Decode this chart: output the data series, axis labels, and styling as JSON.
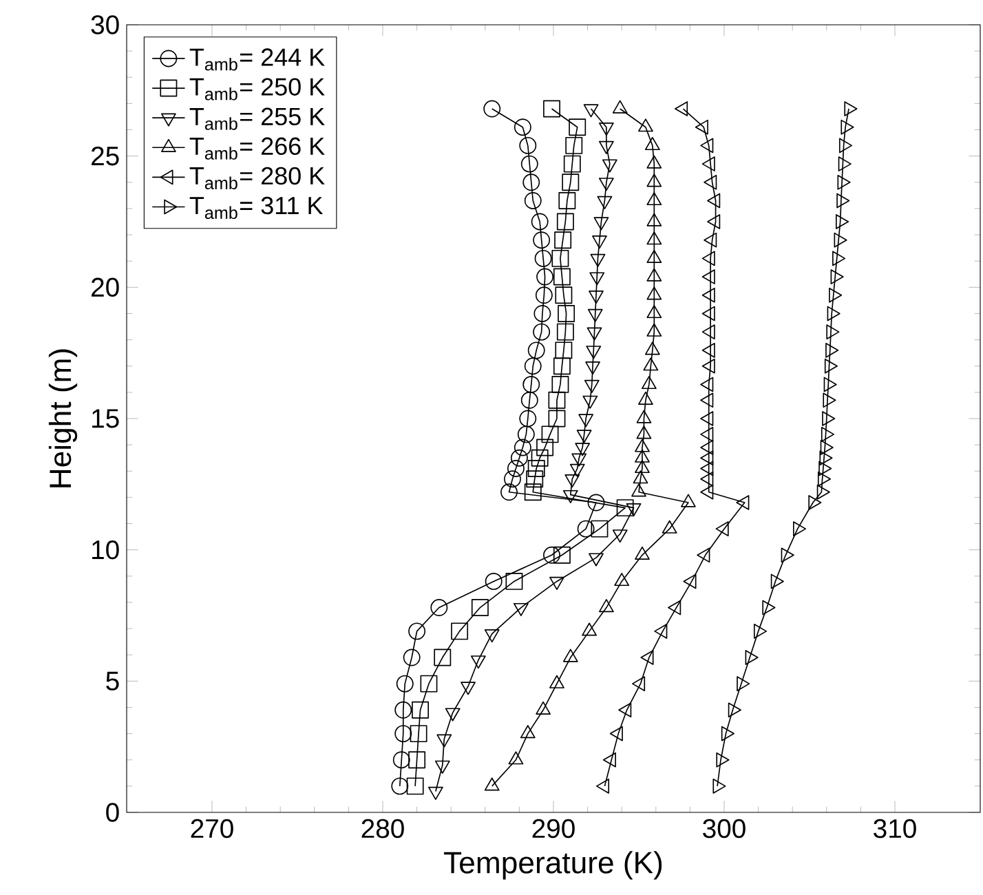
{
  "chart_data": {
    "type": "line",
    "xlabel": "Temperature (K)",
    "ylabel": "Height (m)",
    "xlim": [
      265,
      315
    ],
    "xticks": [
      270,
      280,
      290,
      300,
      310
    ],
    "ylim": [
      0,
      30
    ],
    "yticks": [
      0,
      5,
      10,
      15,
      20,
      25,
      30
    ],
    "legend": "top left",
    "line_style": "solid",
    "series": [
      {
        "name": "T$_{amb}$= 244 K",
        "color": "#000000",
        "marker": "circle",
        "x": [
          281.0,
          281.1,
          281.2,
          281.2,
          281.3,
          281.7,
          282.0,
          283.3,
          286.5,
          289.9,
          291.9,
          292.5,
          287.4,
          287.6,
          287.8,
          288.0,
          288.2,
          288.4,
          288.5,
          288.6,
          288.7,
          288.8,
          289.0,
          289.3,
          289.35,
          289.45,
          289.5,
          289.4,
          289.3,
          289.2,
          288.8,
          288.7,
          288.6,
          288.5,
          288.2,
          286.4
        ],
        "values": [
          1,
          2,
          3,
          3.9,
          4.9,
          5.9,
          6.9,
          7.8,
          8.8,
          9.8,
          10.8,
          11.8,
          12.2,
          12.7,
          13.1,
          13.5,
          13.9,
          14.4,
          15.0,
          15.7,
          16.3,
          17.0,
          17.6,
          18.3,
          19.0,
          19.7,
          20.4,
          21.1,
          21.8,
          22.5,
          23.3,
          24.0,
          24.7,
          25.4,
          26.1,
          26.8
        ]
      },
      {
        "name": "T$_{amb}$= 250 K",
        "color": "#000000",
        "marker": "square",
        "x": [
          281.9,
          282.0,
          282.1,
          282.2,
          282.7,
          283.5,
          284.5,
          285.7,
          287.7,
          290.5,
          292.7,
          294.2,
          288.8,
          288.9,
          289.0,
          289.2,
          289.5,
          289.8,
          290.2,
          290.2,
          290.4,
          290.5,
          290.6,
          290.7,
          290.75,
          290.6,
          290.5,
          290.4,
          290.55,
          290.7,
          290.8,
          291.0,
          291.1,
          291.2,
          291.4,
          289.9
        ],
        "values": [
          1,
          2,
          3,
          3.9,
          4.9,
          5.9,
          6.9,
          7.8,
          8.8,
          9.8,
          10.8,
          11.6,
          12.2,
          12.7,
          13.1,
          13.5,
          13.9,
          14.4,
          15.0,
          15.7,
          16.3,
          17.0,
          17.6,
          18.3,
          19.0,
          19.7,
          20.4,
          21.1,
          21.8,
          22.5,
          23.3,
          24.0,
          24.7,
          25.4,
          26.1,
          26.8
        ]
      },
      {
        "name": "T$_{amb}$= 255 K",
        "color": "#000000",
        "marker": "triangle-down",
        "x": [
          283.1,
          283.5,
          283.6,
          284.1,
          285.0,
          285.6,
          286.4,
          288.1,
          290.2,
          292.5,
          293.9,
          294.7,
          291.0,
          291.1,
          291.4,
          291.5,
          291.7,
          291.8,
          291.9,
          292.15,
          292.25,
          292.3,
          292.35,
          292.4,
          292.45,
          292.5,
          292.55,
          292.6,
          292.7,
          292.8,
          293.0,
          293.1,
          293.3,
          293.1,
          293.1,
          292.2
        ],
        "values": [
          0.8,
          1.8,
          2.8,
          3.8,
          4.8,
          5.8,
          6.8,
          7.8,
          8.8,
          9.7,
          10.6,
          11.6,
          12.1,
          12.7,
          13.1,
          13.5,
          13.9,
          14.4,
          15.0,
          15.7,
          16.3,
          17.0,
          17.6,
          18.3,
          19.0,
          19.7,
          20.4,
          21.1,
          21.8,
          22.5,
          23.3,
          24.0,
          24.7,
          25.4,
          26.1,
          26.8
        ]
      },
      {
        "name": "T$_{amb}$= 266 K",
        "color": "#000000",
        "marker": "triangle",
        "x": [
          286.4,
          287.8,
          288.5,
          289.4,
          290.2,
          291.0,
          292.1,
          293.1,
          294.0,
          295.2,
          296.8,
          297.9,
          295.0,
          295.1,
          295.2,
          295.2,
          295.2,
          295.3,
          295.3,
          295.4,
          295.6,
          295.7,
          295.8,
          295.9,
          295.9,
          295.9,
          295.9,
          295.9,
          295.9,
          295.9,
          295.9,
          295.9,
          295.9,
          295.8,
          295.4,
          293.9
        ],
        "values": [
          1,
          2,
          3,
          3.9,
          4.9,
          5.9,
          6.9,
          7.8,
          8.8,
          9.8,
          10.8,
          11.8,
          12.2,
          12.7,
          13.1,
          13.5,
          13.9,
          14.4,
          15.0,
          15.7,
          16.3,
          17.0,
          17.6,
          18.3,
          19.0,
          19.7,
          20.4,
          21.1,
          21.8,
          22.5,
          23.3,
          24.0,
          24.7,
          25.4,
          26.1,
          26.8
        ]
      },
      {
        "name": "T$_{amb}$= 280 K",
        "color": "#000000",
        "marker": "triangle-left",
        "x": [
          293.0,
          293.4,
          293.8,
          294.3,
          295.1,
          295.6,
          296.4,
          297.2,
          298.1,
          298.9,
          300.0,
          301.2,
          299.1,
          299.1,
          299.1,
          299.1,
          299.1,
          299.1,
          299.1,
          299.1,
          299.1,
          299.2,
          299.2,
          299.2,
          299.2,
          299.2,
          299.2,
          299.2,
          299.3,
          299.5,
          299.5,
          299.3,
          299.2,
          299.1,
          298.8,
          297.6
        ],
        "values": [
          1,
          2,
          3,
          3.9,
          4.9,
          5.9,
          6.9,
          7.8,
          8.8,
          9.8,
          10.8,
          11.8,
          12.2,
          12.7,
          13.1,
          13.5,
          13.9,
          14.4,
          15.0,
          15.7,
          16.3,
          17.0,
          17.6,
          18.3,
          19.0,
          19.7,
          20.4,
          21.1,
          21.8,
          22.5,
          23.3,
          24.0,
          24.7,
          25.4,
          26.1,
          26.8
        ]
      },
      {
        "name": "T$_{amb}$= 311 K",
        "color": "#000000",
        "marker": "triangle-right",
        "x": [
          299.6,
          299.8,
          300.1,
          300.5,
          301.0,
          301.5,
          302.0,
          302.5,
          303.0,
          303.6,
          304.3,
          305.2,
          305.7,
          305.75,
          305.8,
          305.85,
          305.9,
          305.95,
          306.0,
          306.05,
          306.1,
          306.15,
          306.2,
          306.25,
          306.3,
          306.4,
          306.5,
          306.6,
          306.7,
          306.8,
          306.85,
          306.9,
          306.95,
          307.0,
          307.1,
          307.3
        ],
        "values": [
          1,
          2,
          3,
          3.9,
          4.9,
          5.9,
          6.9,
          7.8,
          8.8,
          9.8,
          10.8,
          11.8,
          12.2,
          12.7,
          13.1,
          13.5,
          13.9,
          14.4,
          15.0,
          15.7,
          16.3,
          17.0,
          17.6,
          18.3,
          19.0,
          19.7,
          20.4,
          21.1,
          21.8,
          22.5,
          23.3,
          24.0,
          24.7,
          25.4,
          26.1,
          26.8
        ]
      }
    ]
  }
}
